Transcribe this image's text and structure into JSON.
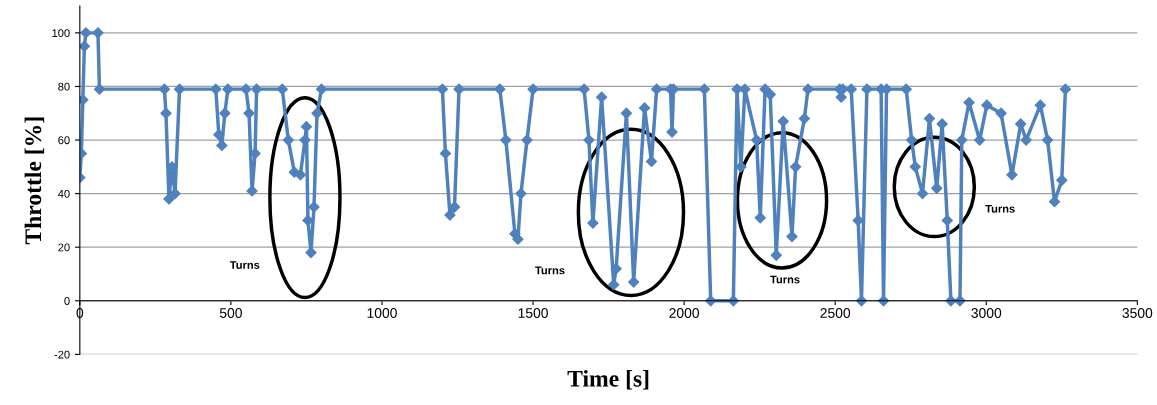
{
  "chart_data": {
    "type": "line",
    "xlabel": "Time [s]",
    "ylabel": "Throttle [%]",
    "xlim": [
      0,
      3500
    ],
    "xticks": [
      0,
      500,
      1000,
      1500,
      2000,
      2500,
      3000,
      3500
    ],
    "ylim": [
      -20,
      110
    ],
    "yticks": [
      -20,
      0,
      20,
      40,
      60,
      80,
      100
    ],
    "grid": "y",
    "marker": "diamond",
    "line_style": "solid",
    "series": [
      {
        "color": "#4f81bd",
        "x": [
          0,
          5,
          10,
          15,
          20,
          60,
          65,
          280,
          285,
          295,
          305,
          315,
          330,
          450,
          460,
          470,
          480,
          490,
          550,
          560,
          570,
          580,
          585,
          670,
          690,
          710,
          730,
          745,
          750,
          755,
          765,
          775,
          785,
          800,
          1200,
          1210,
          1225,
          1240,
          1255,
          1390,
          1410,
          1440,
          1450,
          1460,
          1480,
          1500,
          1669,
          1685,
          1698,
          1727,
          1767,
          1775,
          1809,
          1833,
          1869,
          1892,
          1909,
          1955,
          1960,
          1965,
          2067,
          2088,
          2163,
          2175,
          2188,
          2201,
          2240,
          2252,
          2268,
          2285,
          2305,
          2328,
          2357,
          2369,
          2398,
          2410,
          2515,
          2520,
          2525,
          2553,
          2576,
          2587,
          2605,
          2652,
          2660,
          2670,
          2735,
          2753,
          2765,
          2789,
          2812,
          2836,
          2854,
          2871,
          2883,
          2913,
          2919,
          2943,
          2978,
          3002,
          3049,
          3085,
          3114,
          3132,
          3179,
          3203,
          3226,
          3250,
          3262
        ],
        "values": [
          46,
          55,
          75,
          95,
          100,
          100,
          79,
          79,
          70,
          38,
          50,
          40,
          79,
          79,
          62,
          58,
          70,
          79,
          79,
          70,
          41,
          55,
          79,
          79,
          60,
          48,
          47,
          60,
          65,
          30,
          18,
          35,
          70,
          79,
          79,
          55,
          32,
          35,
          79,
          79,
          60,
          25,
          23,
          40,
          60,
          79,
          79,
          60,
          29,
          76,
          6,
          12,
          70,
          7,
          72,
          52,
          79,
          79,
          63,
          79,
          79,
          0,
          0,
          79,
          50,
          79,
          60,
          31,
          79,
          77,
          17,
          67,
          24,
          50,
          68,
          79,
          79,
          76,
          79,
          79,
          30,
          0,
          79,
          79,
          0,
          79,
          79,
          60,
          50,
          40,
          68,
          42,
          66,
          30,
          0,
          0,
          60,
          74,
          60,
          73,
          70,
          47,
          66,
          60,
          73,
          60,
          37,
          45,
          79
        ]
      }
    ],
    "annotations": [
      "Turns",
      "Turns",
      "Turns",
      "Turns"
    ]
  }
}
